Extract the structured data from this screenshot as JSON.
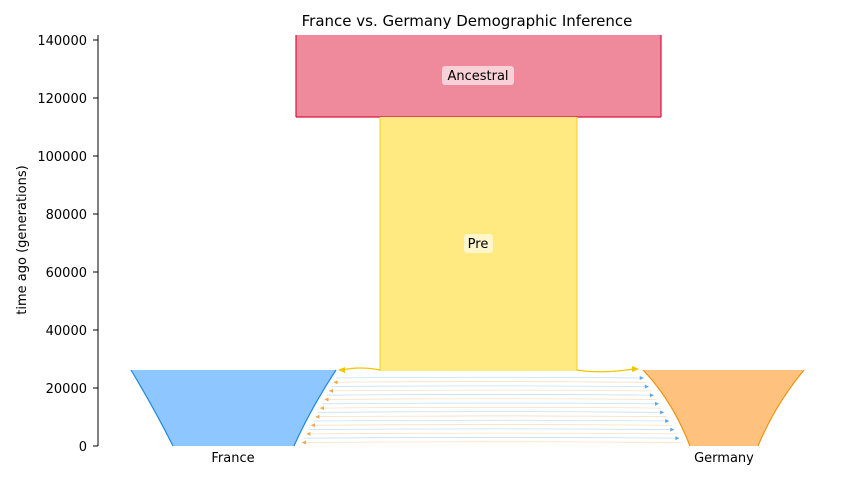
{
  "title": "France vs. Germany Demographic Inference",
  "y_axis": {
    "label": "time ago (generations)",
    "ticks": [
      "0",
      "20000",
      "40000",
      "60000",
      "80000",
      "100000",
      "120000",
      "140000"
    ]
  },
  "demes": {
    "ancestral": {
      "label": "Ancestral",
      "start_time": 142000,
      "end_time": 113500,
      "color": "#ee8a9b",
      "edge": "#dc143c"
    },
    "pre": {
      "label": "Pre",
      "start_time": 113500,
      "end_time": 26000,
      "color": "#ffe981",
      "edge": "#f5d020"
    },
    "france": {
      "label": "France",
      "start_time": 26000,
      "end_time": 0,
      "color": "#8ec6ff",
      "edge": "#1e88e5"
    },
    "germany": {
      "label": "Germany",
      "start_time": 26000,
      "end_time": 0,
      "color": "#ffc27e",
      "edge": "#f29111"
    }
  },
  "migration_colors": {
    "to_france": "#f4a54a",
    "to_germany": "#5aa8e6",
    "split": "#f5c400"
  }
}
